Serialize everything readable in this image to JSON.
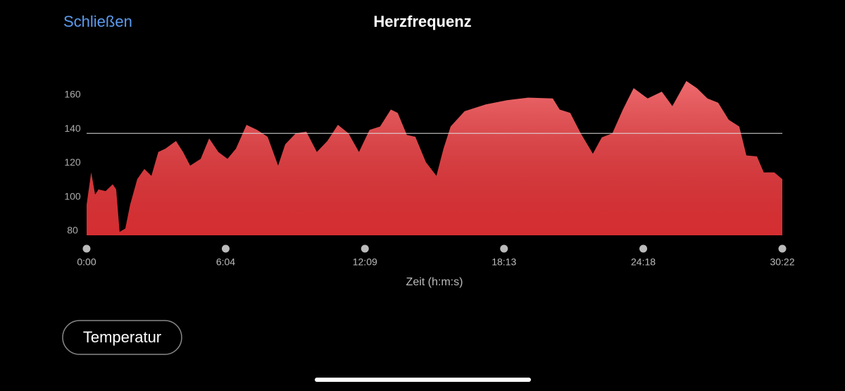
{
  "header": {
    "close": "Schließen"
  },
  "button": "Temperatur",
  "chart_data": {
    "type": "area",
    "title": "Herzfrequenz",
    "x_label": "Zeit (h:m:s)",
    "x": [
      0,
      0.2,
      0.37,
      0.52,
      0.83,
      1.14,
      1.29,
      1.44,
      1.69,
      1.9,
      2.21,
      2.52,
      2.83,
      3.13,
      3.44,
      3.9,
      4.21,
      4.52,
      4.98,
      5.35,
      5.75,
      6.15,
      6.52,
      6.98,
      7.44,
      7.9,
      8.36,
      8.67,
      9.13,
      9.59,
      10.05,
      10.51,
      10.97,
      11.43,
      11.89,
      12.35,
      12.81,
      13.28,
      13.58,
      13.98,
      14.35,
      14.81,
      15.27,
      15.58,
      15.89,
      16.5,
      17.42,
      18.35,
      19.27,
      20.35,
      20.65,
      21.11,
      21.57,
      22.1,
      22.49,
      22.95,
      23.41,
      23.88,
      24.49,
      25.11,
      25.57,
      26.18,
      26.64,
      27.1,
      27.57,
      28.03,
      28.49,
      28.8,
      29.26,
      29.56,
      30.02,
      30.37
    ],
    "values": [
      98,
      117,
      104,
      107,
      106,
      110,
      107,
      82,
      84,
      98,
      113,
      119,
      115,
      129,
      131,
      135.5,
      129,
      121,
      125,
      137,
      129,
      125,
      131,
      145,
      142,
      138,
      121,
      133.5,
      140,
      141,
      129,
      135.5,
      145,
      140,
      129,
      142,
      144,
      154,
      152,
      139,
      138,
      123,
      115,
      131,
      144,
      153,
      157,
      159.5,
      161,
      160.5,
      154,
      152,
      140,
      128,
      137.6,
      140,
      154,
      166.6,
      160.5,
      164.5,
      156,
      170.8,
      166.6,
      160.5,
      158,
      148,
      144,
      127,
      126.4,
      117,
      117,
      113
    ],
    "color": "#e83236",
    "xlim": [
      0,
      30.37
    ],
    "xticks": [
      {
        "value": 0,
        "label": "0:00"
      },
      {
        "value": 6.07,
        "label": "6:04"
      },
      {
        "value": 12.15,
        "label": "12:09"
      },
      {
        "value": 18.22,
        "label": "18:13"
      },
      {
        "value": 24.3,
        "label": "24:18"
      },
      {
        "value": 30.37,
        "label": "30:22"
      }
    ],
    "ylim": [
      80,
      175
    ],
    "yticks": [
      80,
      100,
      120,
      140,
      160
    ],
    "reference_line": 140,
    "grid": false
  }
}
